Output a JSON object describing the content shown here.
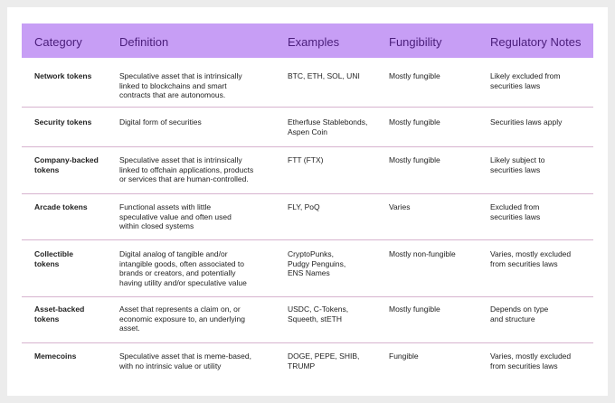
{
  "table": {
    "headers": [
      "Category",
      "Definition",
      "Examples",
      "Fungibility",
      "Regulatory Notes"
    ],
    "rows": [
      [
        [
          "Network tokens"
        ],
        [
          "Speculative asset that is intrinsically",
          "linked to blockchains and smart",
          "contracts that are autonomous."
        ],
        [
          "BTC, ETH, SOL, UNI"
        ],
        [
          "Mostly fungible"
        ],
        [
          "Likely excluded from",
          "securities laws"
        ]
      ],
      [
        [
          "Security tokens"
        ],
        [
          "Digital form of securities"
        ],
        [
          "Etherfuse Stablebonds,",
          "Aspen Coin"
        ],
        [
          "Mostly fungible"
        ],
        [
          "Securities laws apply"
        ]
      ],
      [
        [
          "Company-backed",
          "tokens"
        ],
        [
          "Speculative asset that is intrinsically",
          "linked to offchain applications, products",
          "or services that are human-controlled."
        ],
        [
          "FTT (FTX)"
        ],
        [
          "Mostly fungible"
        ],
        [
          "Likely subject to",
          "securities laws"
        ]
      ],
      [
        [
          "Arcade tokens"
        ],
        [
          "Functional assets with little",
          "speculative value and often used",
          "within closed systems"
        ],
        [
          "FLY, PoQ"
        ],
        [
          "Varies"
        ],
        [
          "Excluded from",
          "securities laws"
        ]
      ],
      [
        [
          "Collectible",
          "tokens"
        ],
        [
          "Digital analog of tangible and/or",
          "intangible goods, often associated to",
          "brands or creators, and potentially",
          "having utility and/or speculative value"
        ],
        [
          "CryptoPunks,",
          "Pudgy Penguins,",
          "ENS Names"
        ],
        [
          "Mostly non-fungible"
        ],
        [
          "Varies, mostly excluded",
          "from securities laws"
        ]
      ],
      [
        [
          "Asset-backed",
          "tokens"
        ],
        [
          "Asset that represents a claim on, or",
          "economic exposure to, an underlying",
          "asset."
        ],
        [
          "USDC, C-Tokens,",
          "Squeeth, stETH"
        ],
        [
          "Mostly fungible"
        ],
        [
          "Depends on type",
          "and structure"
        ]
      ],
      [
        [
          "Memecoins"
        ],
        [
          "Speculative asset that is meme-based,",
          "with no intrinsic value or utility"
        ],
        [
          "DOGE, PEPE, SHIB,",
          "TRUMP"
        ],
        [
          "Fungible"
        ],
        [
          "Varies, mostly excluded",
          "from securities laws"
        ]
      ]
    ]
  }
}
